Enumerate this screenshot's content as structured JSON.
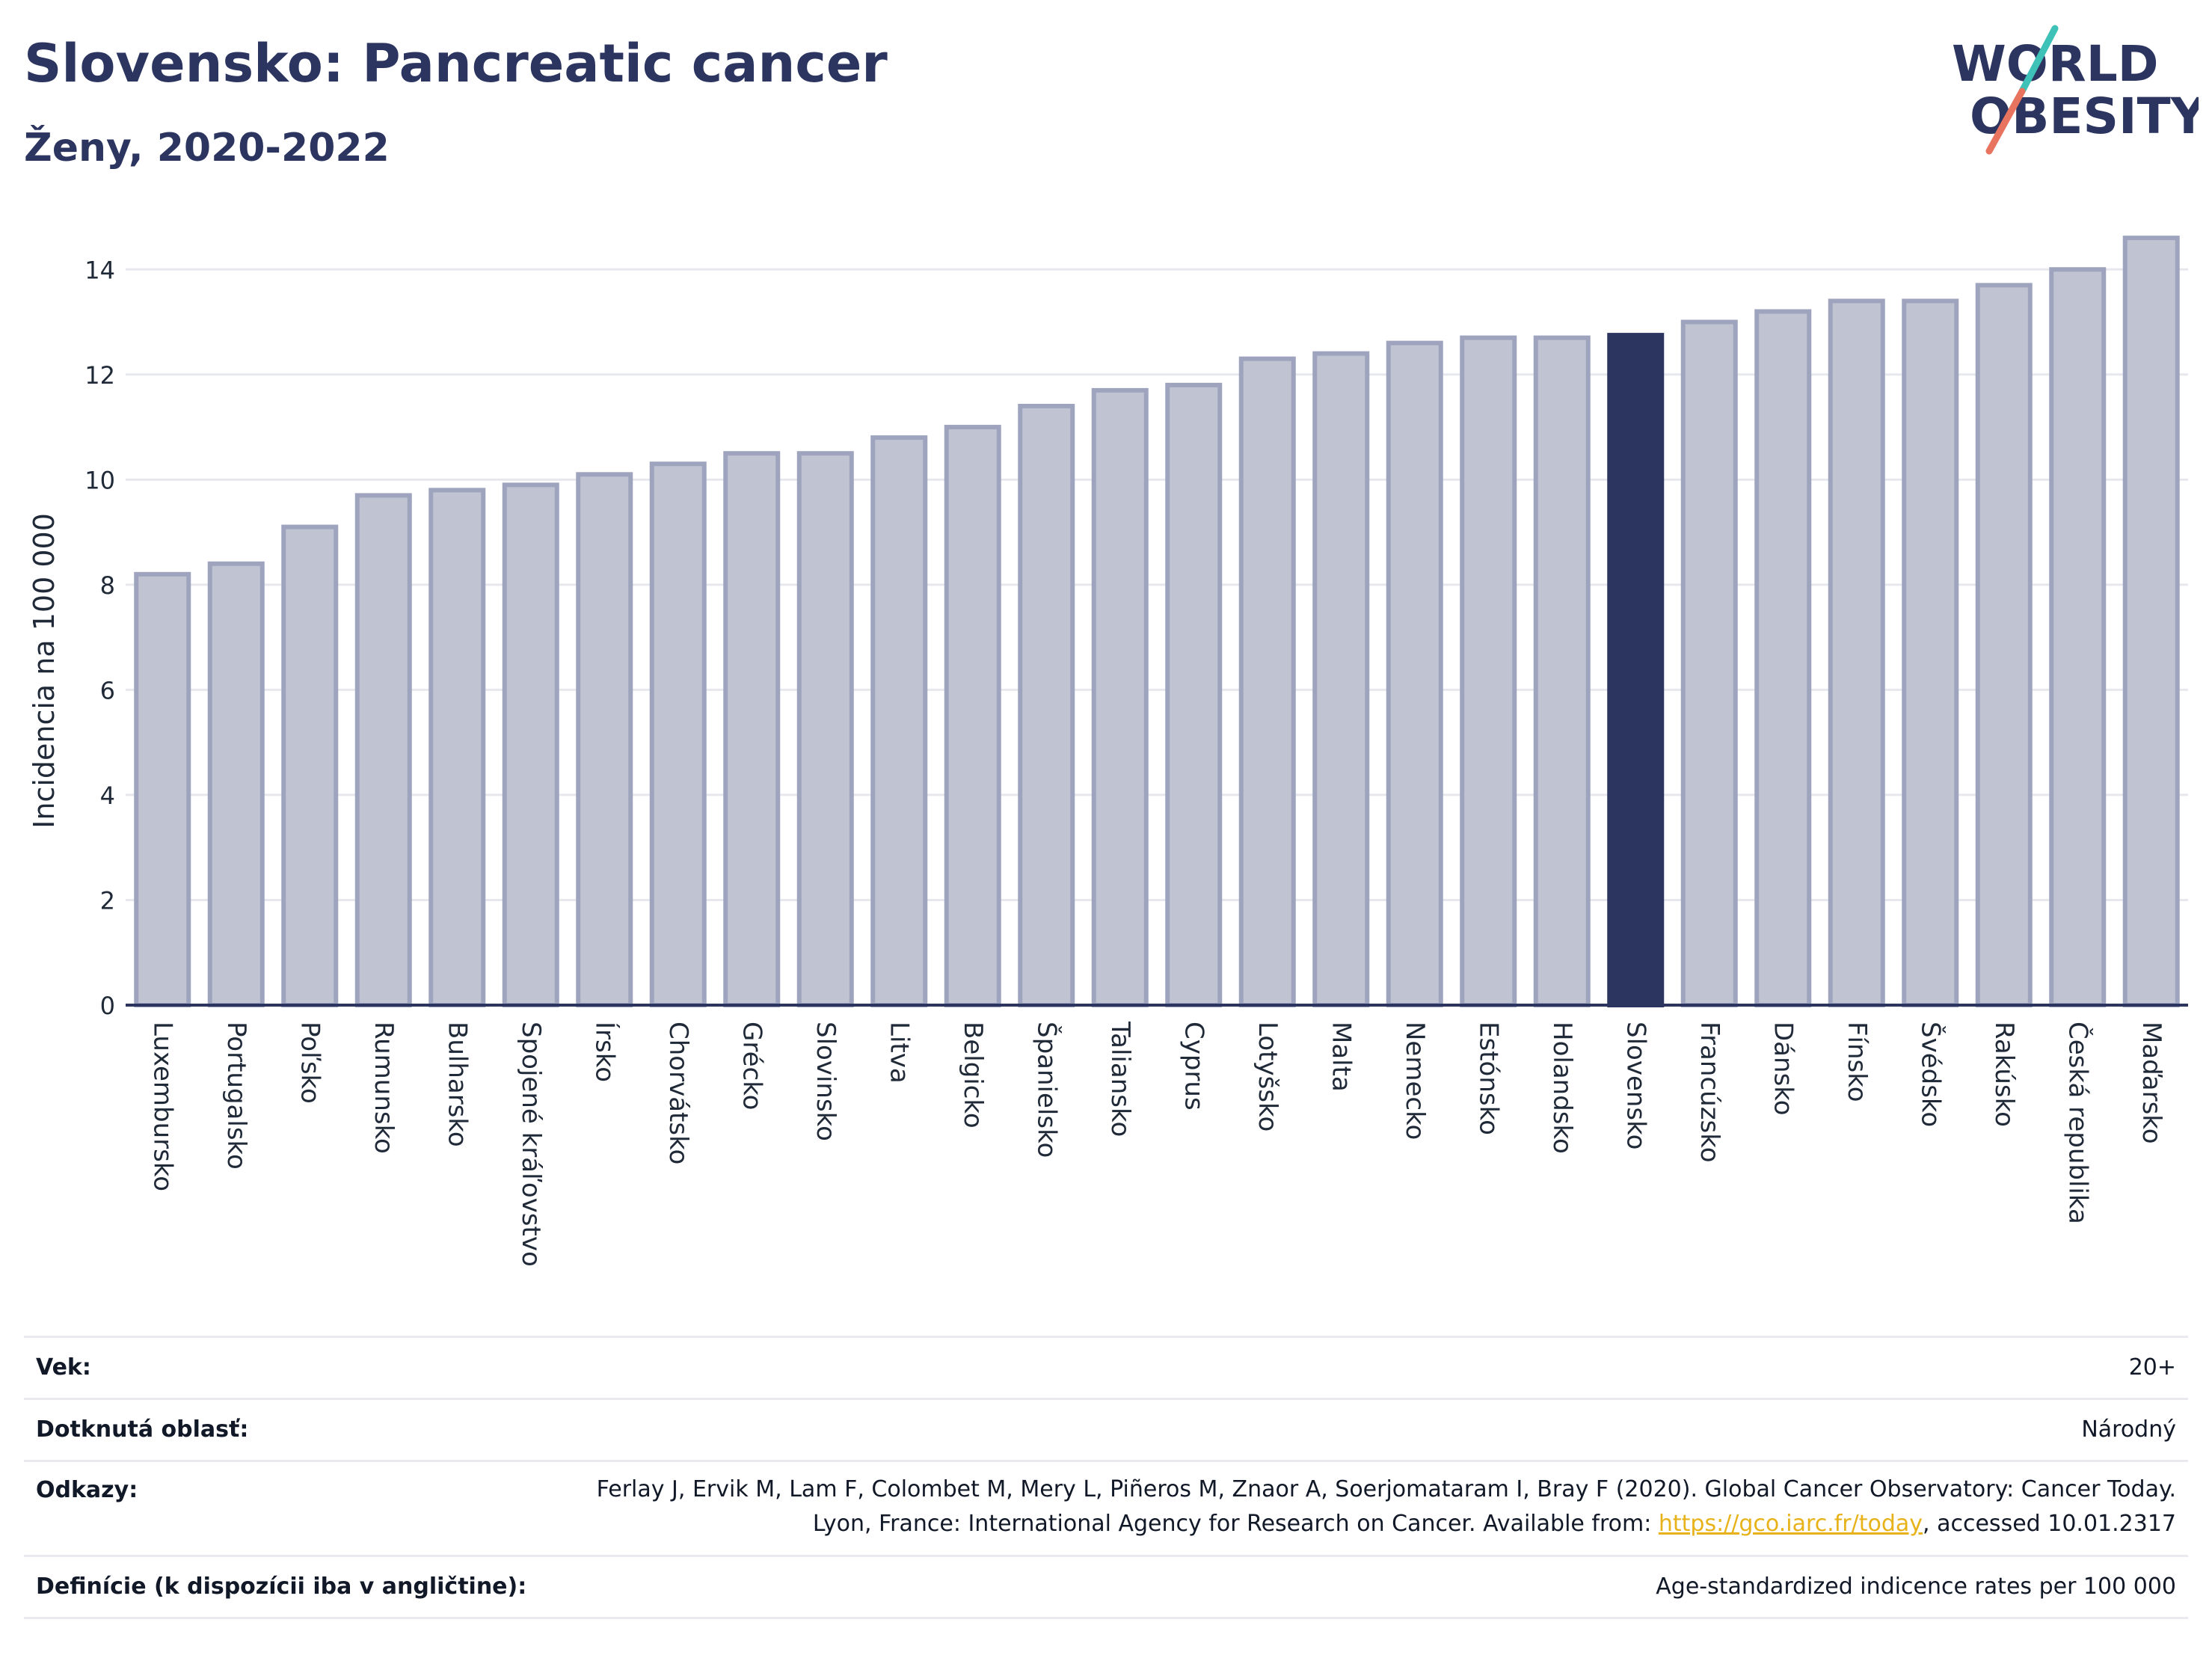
{
  "header": {
    "title": "Slovensko: Pancreatic cancer",
    "subtitle": "Ženy, 2020-2022",
    "logo_line1": "WORLD",
    "logo_line2": "OBESITY"
  },
  "chart_data": {
    "type": "bar",
    "title": "Slovensko: Pancreatic cancer",
    "subtitle": "Ženy, 2020-2022",
    "ylabel": "Incidencia na 100 000",
    "ylim": [
      0,
      15
    ],
    "yticks": [
      "0",
      "2",
      "4",
      "6",
      "8",
      "10",
      "12",
      "14"
    ],
    "grid": true,
    "highlight": "Slovensko",
    "categories": [
      "Luxembursko",
      "Portugalsko",
      "Poľsko",
      "Rumunsko",
      "Bulharsko",
      "Spojené kráľovstvo",
      "Írsko",
      "Chorvátsko",
      "Grécko",
      "Slovinsko",
      "Litva",
      "Belgicko",
      "Španielsko",
      "Taliansko",
      "Cyprus",
      "Lotyšsko",
      "Malta",
      "Nemecko",
      "Estónsko",
      "Holandsko",
      "Slovensko",
      "Francúzsko",
      "Dánsko",
      "Fínsko",
      "Švédsko",
      "Rakúsko",
      "Česká republika",
      "Maďarsko"
    ],
    "values": [
      8.2,
      8.4,
      9.1,
      9.7,
      9.8,
      9.9,
      10.1,
      10.3,
      10.5,
      10.5,
      10.8,
      11.0,
      11.4,
      11.7,
      11.8,
      12.3,
      12.4,
      12.6,
      12.7,
      12.7,
      12.75,
      13.0,
      13.2,
      13.4,
      13.4,
      13.7,
      14.0,
      14.6
    ]
  },
  "colors": {
    "bar": "#c0c4d2",
    "bar_border": "#9ea4bd",
    "highlight": "#2b3560",
    "title": "#2b3560",
    "logo_teal": "#3ec1b6",
    "logo_red": "#e8735f",
    "link": "#e8b21a"
  },
  "footer": {
    "rows": [
      {
        "label": "Vek:",
        "value": "20+"
      },
      {
        "label": "Dotknutá oblasť:",
        "value": "Národný"
      },
      {
        "label": "Odkazy:",
        "value_pre": "Ferlay J, Ervik M, Lam F, Colombet M, Mery L, Piñeros M, Znaor A, Soerjomataram I, Bray F (2020). Global Cancer Observatory: Cancer Today. Lyon, France: International Agency for Research on Cancer. Available from: ",
        "link": "https://gco.iarc.fr/today",
        "value_post": ", accessed 10.01.2317"
      },
      {
        "label": "Definície (k dispozícii iba v angličtine):",
        "value": "Age-standardized indicence rates per 100 000"
      }
    ]
  }
}
